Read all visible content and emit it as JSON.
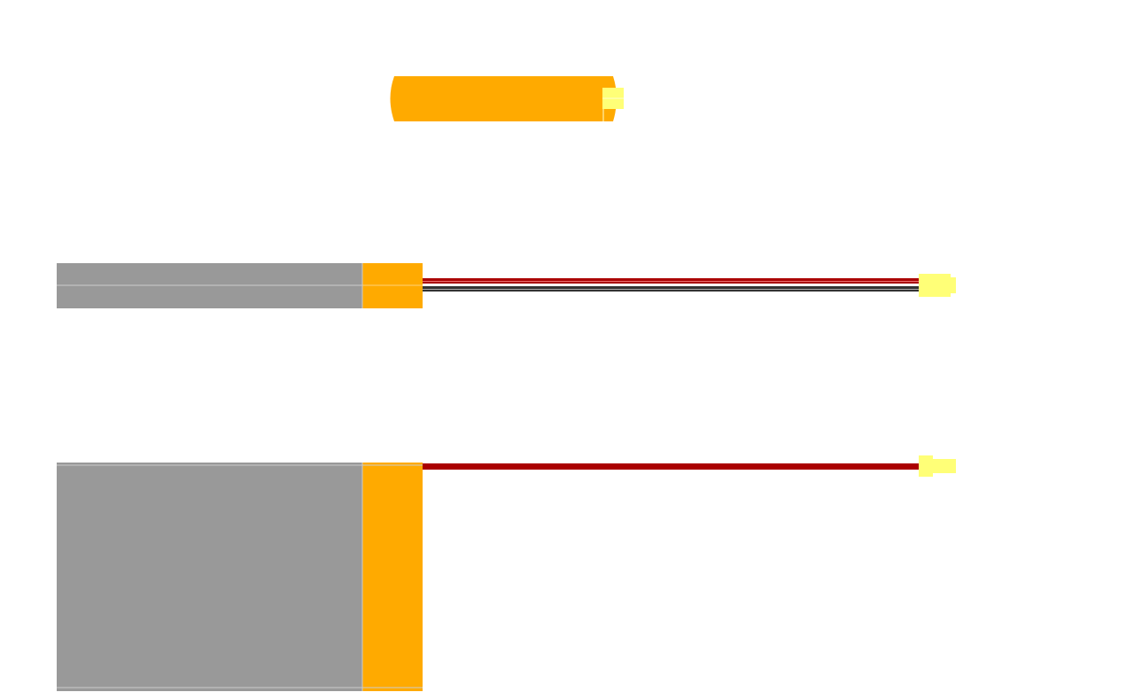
{
  "colors": {
    "background": "#ffffff",
    "cell_body": "#999999",
    "tab": "#ffaa00",
    "wire_red": "#aa0000",
    "wire_black": "#333333",
    "wire_light_red": "#ee7777",
    "wire_light_gray": "#aaaaaa",
    "connector": "#ffff77",
    "connector_edge": "#ffffcc",
    "seam": "#cccccc",
    "seam_tab": "#ffd27a"
  },
  "components": [
    {
      "name": "cylindrical-cell",
      "icon": "cylindrical-battery-icon"
    },
    {
      "name": "flat-pack-with-harness",
      "icon": "lipo-pack-side-icon",
      "wires": [
        "red",
        "black"
      ],
      "connector": "plug-icon"
    },
    {
      "name": "pouch-cell-with-lead",
      "icon": "pouch-cell-icon",
      "wires": [
        "red"
      ],
      "connector": "plug-icon"
    }
  ]
}
